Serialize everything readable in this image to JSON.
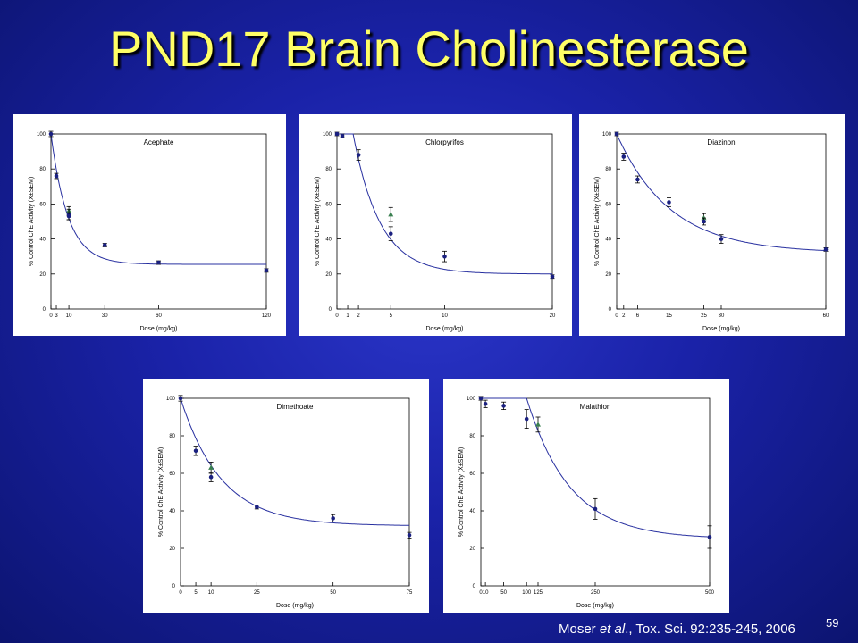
{
  "slide": {
    "title": "PND17 Brain Cholinesterase",
    "citation_pre": "Moser ",
    "citation_italic": "et al",
    "citation_post": "., Tox. Sci. 92:235-245, 2006",
    "page_number": "59"
  },
  "colors": {
    "background": "#1a22a8",
    "title": "#ffff66",
    "curve": "#2830a0",
    "marker": "#1a2080",
    "marker_alt": "#3a8050"
  },
  "chart_data": [
    {
      "type": "scatter",
      "title": "Acephate",
      "xlabel": "Dose (mg/kg)",
      "ylabel": "% Control ChE Activity (X±SEM)",
      "xlim": [
        0,
        120
      ],
      "ylim": [
        0,
        100
      ],
      "xticks": [
        0,
        3,
        10,
        30,
        60,
        120
      ],
      "yticks": [
        0,
        20,
        40,
        60,
        80,
        100
      ],
      "curve": {
        "top": 100,
        "bottom": 25.5,
        "k": 0.105,
        "threshold": 0
      },
      "points": [
        {
          "x": 0,
          "y": 100,
          "err": 1.5
        },
        {
          "x": 3,
          "y": 76,
          "err": 1.5
        },
        {
          "x": 10,
          "y": 56,
          "err": 2.5,
          "alt": true
        },
        {
          "x": 10,
          "y": 54,
          "err": 3
        },
        {
          "x": 10,
          "y": 53,
          "err": 2
        },
        {
          "x": 30,
          "y": 36.5,
          "err": 1
        },
        {
          "x": 60,
          "y": 26.5,
          "err": 1
        },
        {
          "x": 120,
          "y": 22,
          "err": 1
        }
      ]
    },
    {
      "type": "scatter",
      "title": "Chlorpyrifos",
      "xlabel": "Dose (mg/kg)",
      "ylabel": "% Control ChE Activity (X±SEM)",
      "xlim": [
        0,
        20
      ],
      "ylim": [
        0,
        100
      ],
      "xticks": [
        0,
        1,
        2,
        5,
        10,
        20
      ],
      "yticks": [
        0,
        20,
        40,
        60,
        80,
        100
      ],
      "curve": {
        "top": 100,
        "bottom": 20,
        "k": 0.4,
        "threshold": 1.5
      },
      "points": [
        {
          "x": 0,
          "y": 100,
          "err": 1
        },
        {
          "x": 0.5,
          "y": 99,
          "err": 1
        },
        {
          "x": 2,
          "y": 88,
          "err": 3
        },
        {
          "x": 5,
          "y": 54,
          "err": 4,
          "alt": true
        },
        {
          "x": 5,
          "y": 43,
          "err": 4
        },
        {
          "x": 10,
          "y": 30,
          "err": 3
        },
        {
          "x": 20,
          "y": 18.5,
          "err": 1
        }
      ]
    },
    {
      "type": "scatter",
      "title": "Diazinon",
      "xlabel": "Dose (mg/kg)",
      "ylabel": "% Control ChE Activity (X±SEM)",
      "xlim": [
        0,
        60
      ],
      "ylim": [
        0,
        100
      ],
      "xticks": [
        0,
        2,
        6,
        15,
        25,
        30,
        60
      ],
      "yticks": [
        0,
        20,
        40,
        60,
        80,
        100
      ],
      "curve": {
        "top": 100,
        "bottom": 32,
        "k": 0.065,
        "threshold": 0
      },
      "points": [
        {
          "x": 0,
          "y": 100,
          "err": 1
        },
        {
          "x": 2,
          "y": 87,
          "err": 2
        },
        {
          "x": 6,
          "y": 74,
          "err": 2
        },
        {
          "x": 15,
          "y": 61,
          "err": 2.5
        },
        {
          "x": 25,
          "y": 52,
          "err": 2.5,
          "alt": true
        },
        {
          "x": 25,
          "y": 50,
          "err": 2
        },
        {
          "x": 30,
          "y": 40,
          "err": 2.5
        },
        {
          "x": 60,
          "y": 34,
          "err": 1
        }
      ]
    },
    {
      "type": "scatter",
      "title": "Dimethoate",
      "xlabel": "Dose (mg/kg)",
      "ylabel": "% Control ChE Activity (X±SEM)",
      "xlim": [
        0,
        75
      ],
      "ylim": [
        0,
        100
      ],
      "xticks": [
        0,
        5,
        10,
        25,
        50,
        75
      ],
      "yticks": [
        0,
        20,
        40,
        60,
        80,
        100
      ],
      "curve": {
        "top": 100,
        "bottom": 32,
        "k": 0.075,
        "threshold": 0
      },
      "points": [
        {
          "x": 0,
          "y": 100,
          "err": 1.5
        },
        {
          "x": 5,
          "y": 72,
          "err": 2.5
        },
        {
          "x": 10,
          "y": 63,
          "err": 3,
          "alt": true
        },
        {
          "x": 10,
          "y": 58,
          "err": 2.5
        },
        {
          "x": 25,
          "y": 42,
          "err": 1
        },
        {
          "x": 50,
          "y": 36,
          "err": 2
        },
        {
          "x": 75,
          "y": 27,
          "err": 1.5
        }
      ]
    },
    {
      "type": "scatter",
      "title": "Malathion",
      "xlabel": "Dose (mg/kg)",
      "ylabel": "% Control ChE Activity (X±SEM)",
      "xlim": [
        0,
        500
      ],
      "ylim": [
        0,
        100
      ],
      "xticks": [
        0,
        10,
        50,
        100,
        125,
        250,
        500
      ],
      "xtick_labels": [
        "0",
        "10",
        "50",
        "100",
        "125",
        "250",
        "500"
      ],
      "yticks": [
        0,
        20,
        40,
        60,
        80,
        100
      ],
      "curve": {
        "top": 100,
        "bottom": 25,
        "k": 0.0105,
        "threshold": 100
      },
      "points": [
        {
          "x": 0,
          "y": 100,
          "err": 1
        },
        {
          "x": 10,
          "y": 97,
          "err": 2
        },
        {
          "x": 50,
          "y": 96,
          "err": 2
        },
        {
          "x": 100,
          "y": 89,
          "err": 5
        },
        {
          "x": 125,
          "y": 86,
          "err": 4,
          "alt": true
        },
        {
          "x": 250,
          "y": 41,
          "err": 5.5
        },
        {
          "x": 500,
          "y": 26,
          "err": 6
        }
      ]
    }
  ]
}
